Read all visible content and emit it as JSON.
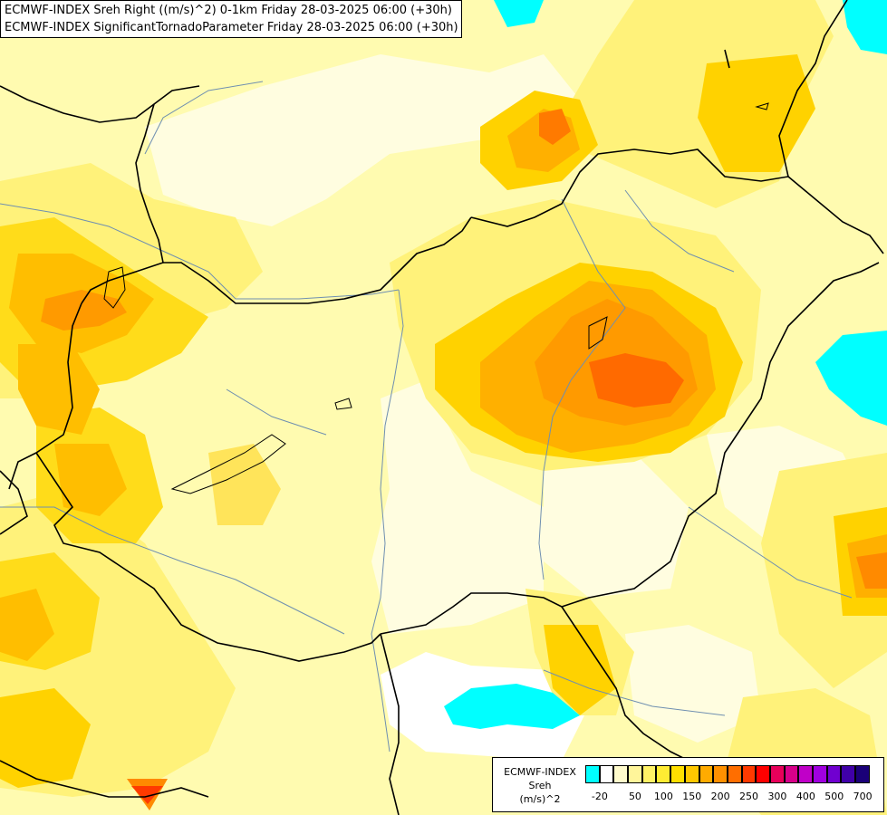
{
  "header": {
    "line1": "ECMWF-INDEX Sreh Right ((m/s)^2) 0-1km Friday 28-03-2025 06:00 (+30h)",
    "line2": "ECMWF-INDEX SignificantTornadoParameter Friday 28-03-2025 06:00 (+30h)"
  },
  "legend": {
    "title_line1": "ECMWF-INDEX",
    "title_line2": "Sreh",
    "title_line3": "(m/s)^2",
    "colors": [
      "#00ffff",
      "#ffffff",
      "#fffbcc",
      "#fff59a",
      "#fff266",
      "#ffeb33",
      "#ffdf00",
      "#ffc800",
      "#ffab00",
      "#ff9000",
      "#ff6e00",
      "#ff3a00",
      "#ff0000",
      "#e8005a",
      "#d8008a",
      "#c000c8",
      "#a000e0",
      "#7000d0",
      "#4000a8",
      "#1a0078"
    ],
    "ticks": [
      "-20",
      "50",
      "100",
      "150",
      "200",
      "250",
      "300",
      "400",
      "500",
      "700"
    ]
  },
  "palette": {
    "base": "#fffbb0",
    "pale": "#ffffe8",
    "light_yellow": "#fff599",
    "yellow": "#ffec3a",
    "gold": "#ffda00",
    "amber": "#ffbd00",
    "orange": "#ff9d00",
    "dark_orange": "#ff7a00",
    "red_orange": "#ff5500",
    "red": "#ff2a00",
    "cyan": "#00ffff",
    "border": "#000000",
    "river": "#6f8fb0"
  }
}
